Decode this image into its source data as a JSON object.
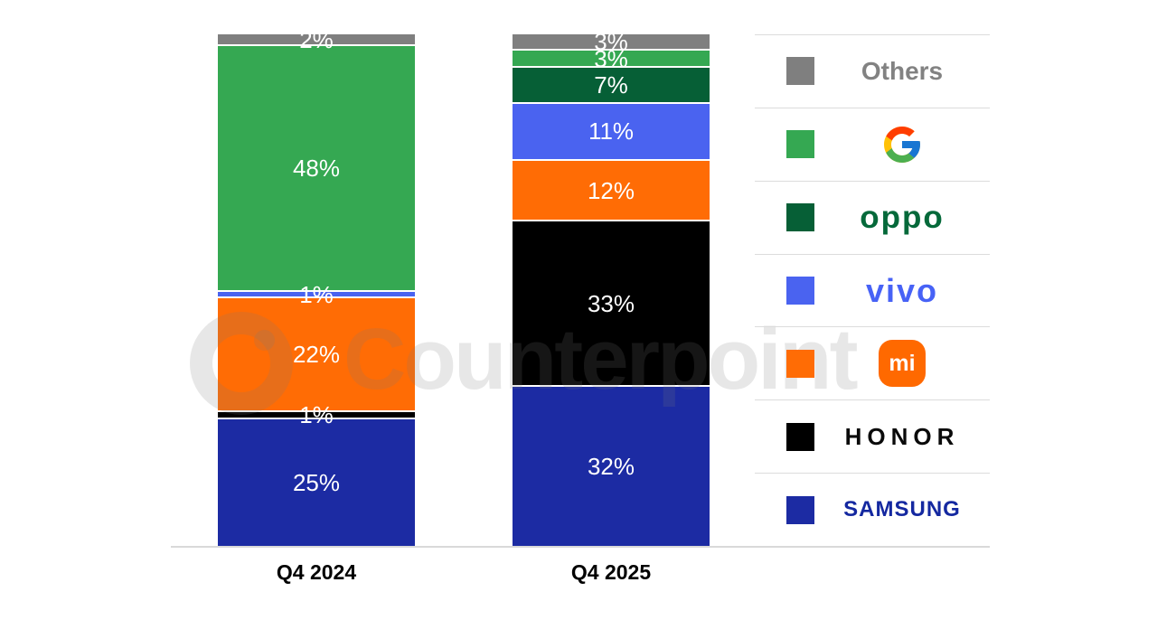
{
  "watermark": {
    "text": "Counterpoint"
  },
  "chart_data": {
    "type": "bar",
    "subtype": "stacked-100-percent",
    "unit": "%",
    "categories": [
      "Q4 2024",
      "Q4 2025"
    ],
    "series": [
      {
        "name": "Others",
        "color": "#7f7f7f",
        "values": [
          2,
          3
        ]
      },
      {
        "name": "Google",
        "color": "#35a852",
        "values": [
          48,
          3
        ]
      },
      {
        "name": "OPPO",
        "color": "#065f36",
        "values": [
          0,
          7
        ]
      },
      {
        "name": "vivo",
        "color": "#4a63f0",
        "values": [
          1,
          11
        ]
      },
      {
        "name": "Xiaomi",
        "color": "#ff6c05",
        "values": [
          22,
          12
        ]
      },
      {
        "name": "HONOR",
        "color": "#000000",
        "values": [
          1,
          33
        ]
      },
      {
        "name": "Samsung",
        "color": "#1c2ba3",
        "values": [
          25,
          32
        ]
      }
    ],
    "stack_order_top_to_bottom": [
      "Others",
      "Google",
      "OPPO",
      "vivo",
      "Xiaomi",
      "HONOR",
      "Samsung"
    ],
    "value_labels": "inside, white",
    "legend_position": "right",
    "axis_color": "#d9d9d9",
    "legend_divider_color": "#dcdcdc"
  },
  "legend": {
    "items": [
      {
        "id": "others",
        "label": "Others",
        "series": "Others"
      },
      {
        "id": "google",
        "label": "",
        "series": "Google",
        "icon": "google-g-icon"
      },
      {
        "id": "oppo",
        "label": "oppo",
        "series": "OPPO"
      },
      {
        "id": "vivo",
        "label": "vivo",
        "series": "vivo"
      },
      {
        "id": "xiaomi",
        "label": "mi",
        "series": "Xiaomi",
        "icon": "xiaomi-mi-icon"
      },
      {
        "id": "honor",
        "label": "HONOR",
        "series": "HONOR"
      },
      {
        "id": "samsung",
        "label": "SAMSUNG",
        "series": "Samsung"
      }
    ]
  }
}
